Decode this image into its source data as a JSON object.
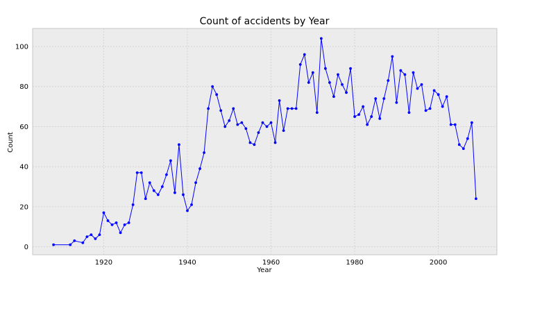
{
  "chart_data": {
    "type": "line",
    "title": "Count of accidents by Year",
    "xlabel": "Year",
    "ylabel": "Count",
    "xlim": [
      1903,
      2014
    ],
    "ylim": [
      -4,
      109
    ],
    "xticks": [
      1920,
      1940,
      1960,
      1980,
      2000
    ],
    "yticks": [
      0,
      20,
      40,
      60,
      80,
      100
    ],
    "grid": true,
    "colors": {
      "series": "#0000ff",
      "plot_bg": "#ececec",
      "frame": "#bcbcbc"
    },
    "series": [
      {
        "x": [
          1908,
          1912,
          1913,
          1915,
          1916,
          1917,
          1918,
          1919,
          1920,
          1921,
          1922,
          1923,
          1924,
          1925,
          1926,
          1927,
          1928,
          1929,
          1930,
          1931,
          1932,
          1933,
          1934,
          1935,
          1936,
          1937,
          1938,
          1939,
          1940,
          1941,
          1942,
          1943,
          1944,
          1945,
          1946,
          1947,
          1948,
          1949,
          1950,
          1951,
          1952,
          1953,
          1954,
          1955,
          1956,
          1957,
          1958,
          1959,
          1960,
          1961,
          1962,
          1963,
          1964,
          1965,
          1966,
          1967,
          1968,
          1969,
          1970,
          1971,
          1972,
          1973,
          1974,
          1975,
          1976,
          1977,
          1978,
          1979,
          1980,
          1981,
          1982,
          1983,
          1984,
          1985,
          1986,
          1987,
          1988,
          1989,
          1990,
          1991,
          1992,
          1993,
          1994,
          1995,
          1996,
          1997,
          1998,
          1999,
          2000,
          2001,
          2002,
          2003,
          2004,
          2005,
          2006,
          2007,
          2008,
          2009
        ],
        "y": [
          1,
          1,
          3,
          2,
          5,
          6,
          4,
          6,
          17,
          13,
          11,
          12,
          7,
          11,
          12,
          21,
          37,
          37,
          24,
          32,
          28,
          26,
          30,
          36,
          43,
          27,
          51,
          26,
          18,
          21,
          32,
          39,
          47,
          69,
          80,
          76,
          68,
          60,
          63,
          69,
          61,
          62,
          59,
          52,
          51,
          57,
          62,
          60,
          62,
          52,
          73,
          58,
          69,
          69,
          69,
          91,
          96,
          82,
          87,
          67,
          104,
          89,
          82,
          75,
          86,
          81,
          77,
          89,
          65,
          66,
          70,
          61,
          65,
          74,
          64,
          74,
          83,
          95,
          72,
          88,
          86,
          67,
          87,
          79,
          81,
          68,
          69,
          78,
          76,
          70,
          75,
          61,
          61,
          51,
          49,
          54,
          62,
          24
        ]
      }
    ]
  }
}
